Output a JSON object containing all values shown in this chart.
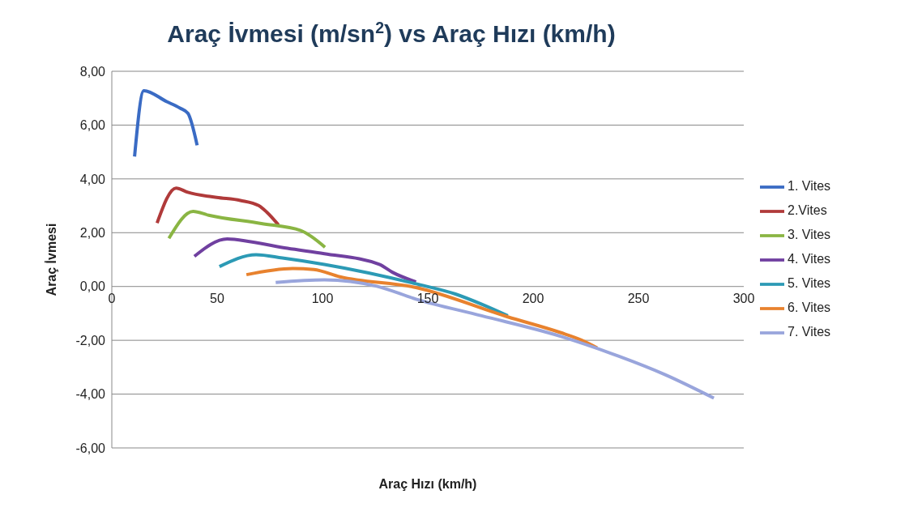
{
  "chart_data": {
    "type": "line",
    "title": "Araç İvmesi (m/sn$^{2}$) vs Araç Hızı (km/h)",
    "xlabel": "Araç Hızı (km/h)",
    "ylabel": "Araç İvmesi",
    "xlim": [
      0,
      300
    ],
    "xticks": [
      0,
      50,
      100,
      150,
      200,
      250,
      300
    ],
    "ylim": [
      -6,
      8
    ],
    "yticks": [
      {
        "value": -6,
        "label": "-6,00"
      },
      {
        "value": -4,
        "label": "-4,00"
      },
      {
        "value": -2,
        "label": "-2,00"
      },
      {
        "value": 0,
        "label": "0,00"
      },
      {
        "value": 2,
        "label": "2,00"
      },
      {
        "value": 4,
        "label": "4,00"
      },
      {
        "value": 6,
        "label": "6,00"
      },
      {
        "value": 8,
        "label": "8,00"
      }
    ],
    "grid": "y",
    "legend": "right",
    "marker": "none",
    "line_style": "solid",
    "series": [
      {
        "name": "1. Vites",
        "color": "#3a6bc4",
        "x": [
          10.8,
          15.2,
          26.1,
          32.4,
          36.1,
          40.5
        ],
        "values": [
          4.83,
          7.28,
          6.87,
          6.63,
          6.44,
          5.25
        ]
      },
      {
        "name": "2.Vites",
        "color": "#b03a3a",
        "x": [
          21.5,
          30.5,
          36.1,
          49.8,
          61,
          69.7,
          73.5,
          79.1
        ],
        "values": [
          2.36,
          3.66,
          3.5,
          3.31,
          3.2,
          3.01,
          2.77,
          2.29
        ]
      },
      {
        "name": "3. Vites",
        "color": "#8ab543",
        "x": [
          27.1,
          38.6,
          46,
          71,
          89.7,
          101.2
        ],
        "values": [
          1.79,
          2.79,
          2.65,
          2.34,
          2.08,
          1.46
        ]
      },
      {
        "name": "4. Vites",
        "color": "#7040a0",
        "x": [
          39.2,
          54.8,
          66,
          83.4,
          100.9,
          127,
          133.2,
          144.4
        ],
        "values": [
          1.12,
          1.77,
          1.66,
          1.42,
          1.22,
          0.82,
          0.53,
          0.17
        ]
      },
      {
        "name": "5. Vites",
        "color": "#2c9ab5",
        "x": [
          51.1,
          68.5,
          81,
          100.9,
          144.4,
          163.1,
          175.6,
          188
        ],
        "values": [
          0.74,
          1.18,
          1.06,
          0.82,
          0.1,
          -0.28,
          -0.66,
          -1.09
        ]
      },
      {
        "name": "6. Vites",
        "color": "#e8822e",
        "x": [
          63.9,
          85.9,
          95.9,
          108.3,
          144.4,
          188,
          212.9,
          222.9,
          230.4
        ],
        "values": [
          0.44,
          0.67,
          0.63,
          0.36,
          -0.04,
          -1.13,
          -1.71,
          -1.99,
          -2.28
        ]
      },
      {
        "name": "7. Vites",
        "color": "#99a5dc",
        "x": [
          77.8,
          100.9,
          125.8,
          144.4,
          175.6,
          212.9,
          237.8,
          262.7,
          285.8
        ],
        "values": [
          0.15,
          0.25,
          0.01,
          -0.47,
          -1.09,
          -1.85,
          -2.51,
          -3.28,
          -4.15
        ]
      }
    ]
  }
}
